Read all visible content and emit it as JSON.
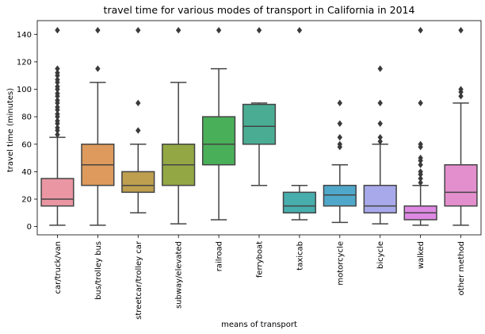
{
  "chart_data": {
    "type": "boxplot",
    "title": "travel time for various modes of transport in California in 2014",
    "xlabel": "means of transport",
    "ylabel": "travel time (minutes)",
    "ylim": [
      -6,
      150
    ],
    "yticks": [
      0,
      20,
      40,
      60,
      80,
      100,
      120,
      140
    ],
    "grid": false,
    "boxes": [
      {
        "category": "car/truck/van",
        "color": "#ea96a3",
        "whisker_low": 1,
        "q1": 15,
        "median": 20,
        "q3": 35,
        "whisker_high": 65,
        "outliers": [
          67,
          70,
          72,
          75,
          77,
          80,
          82,
          85,
          87,
          90,
          92,
          95,
          97,
          100,
          102,
          105,
          107,
          110,
          112,
          115,
          143
        ]
      },
      {
        "category": "bus/trolley bus",
        "color": "#dd9a5c",
        "whisker_low": 1,
        "q1": 30,
        "median": 45,
        "q3": 60,
        "whisker_high": 105,
        "outliers": [
          115,
          143
        ]
      },
      {
        "category": "streetcar/trolley car",
        "color": "#bd9f4f",
        "whisker_low": 10,
        "q1": 25,
        "median": 30,
        "q3": 40,
        "whisker_high": 60,
        "outliers": [
          70,
          90,
          143
        ]
      },
      {
        "category": "subway/elevated",
        "color": "#93a844",
        "whisker_low": 2,
        "q1": 30,
        "median": 45,
        "q3": 60,
        "whisker_high": 105,
        "outliers": [
          143
        ]
      },
      {
        "category": "railroad",
        "color": "#4aaf59",
        "whisker_low": 5,
        "q1": 45,
        "median": 60,
        "q3": 80,
        "whisker_high": 115,
        "outliers": [
          143
        ]
      },
      {
        "category": "ferryboat",
        "color": "#4aad93",
        "whisker_low": 30,
        "q1": 60,
        "median": 73,
        "q3": 89,
        "whisker_high": 90,
        "outliers": [
          143
        ]
      },
      {
        "category": "taxicab",
        "color": "#47adad",
        "whisker_low": 5,
        "q1": 10,
        "median": 15,
        "q3": 25,
        "whisker_high": 30,
        "outliers": [
          143
        ]
      },
      {
        "category": "motorcycle",
        "color": "#4fa8c9",
        "whisker_low": 3,
        "q1": 15,
        "median": 23,
        "q3": 30,
        "whisker_high": 45,
        "outliers": [
          58,
          60,
          65,
          75,
          90
        ]
      },
      {
        "category": "bicycle",
        "color": "#a7a9ea",
        "whisker_low": 2,
        "q1": 10,
        "median": 15,
        "q3": 30,
        "whisker_high": 60,
        "outliers": [
          62,
          65,
          75,
          90,
          115
        ]
      },
      {
        "category": "walked",
        "color": "#dd89e3",
        "whisker_low": 1,
        "q1": 5,
        "median": 10,
        "q3": 15,
        "whisker_high": 30,
        "outliers": [
          32,
          35,
          38,
          40,
          45,
          48,
          50,
          58,
          60,
          90,
          143
        ]
      },
      {
        "category": "other method",
        "color": "#e48fcd",
        "whisker_low": 1,
        "q1": 15,
        "median": 25,
        "q3": 45,
        "whisker_high": 90,
        "outliers": [
          95,
          98,
          100,
          143
        ]
      }
    ]
  }
}
